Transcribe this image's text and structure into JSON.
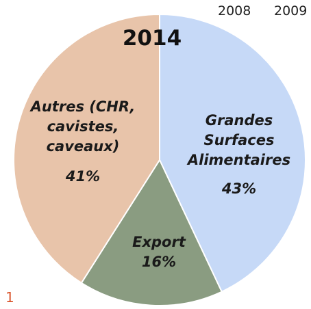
{
  "chart_data": {
    "type": "pie",
    "title": "2014",
    "header_labels": [
      "2008",
      "2009"
    ],
    "footer_label": "1",
    "categories": [
      "Grandes Surfaces Alimentaires",
      "Export",
      "Autres (CHR, cavistes, caveaux)"
    ],
    "values": [
      43,
      16,
      41
    ],
    "value_labels": [
      "43%",
      "16%",
      "41%"
    ],
    "colors": [
      "#c6d9f7",
      "#8a9c81",
      "#e8c4aa"
    ]
  }
}
